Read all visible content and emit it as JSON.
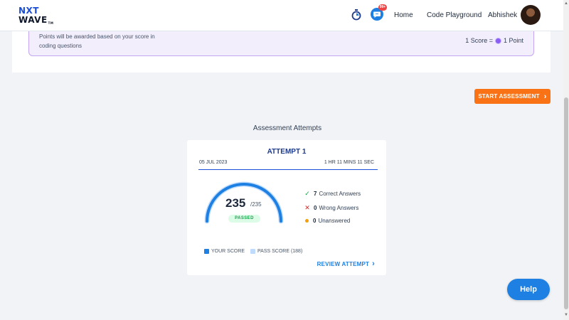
{
  "navbar": {
    "logo_line1": "NXT",
    "logo_line2": "WAVE",
    "logo_tm": "TM",
    "chat_badge": "99+",
    "home": "Home",
    "code_playground": "Code Playground",
    "user_name": "Abhishek"
  },
  "points_info": {
    "text": "Points will be awarded based on your score in coding questions",
    "rule_left": "1 Score =",
    "rule_right": "1 Point"
  },
  "start_button": {
    "label": "START ASSESSMENT",
    "chevron": "›"
  },
  "attempts": {
    "section_title": "Assessment Attempts",
    "title": "ATTEMPT 1",
    "date": "05 JUL 2023",
    "duration": "1 HR 11 MINS 11 SEC",
    "score": "235",
    "total": "/235",
    "status": "PASSED",
    "score_fraction": 1.0,
    "stats": [
      {
        "count": "7",
        "label": "Correct Answers",
        "icon": "check-icon"
      },
      {
        "count": "0",
        "label": "Wrong Answers",
        "icon": "cross-icon"
      },
      {
        "count": "0",
        "label": "Unanswered",
        "icon": "dot-icon"
      }
    ],
    "legend_your_score": "YOUR SCORE",
    "legend_pass_score": "PASS SCORE (188)",
    "review": "REVIEW ATTEMPT",
    "review_chevron": "›"
  },
  "help": {
    "label": "Help"
  },
  "colors": {
    "primary": "#1d80e2",
    "accent_orange": "#f97316",
    "success": "#16a34a",
    "danger": "#dc2626",
    "warning": "#f59e0b"
  }
}
